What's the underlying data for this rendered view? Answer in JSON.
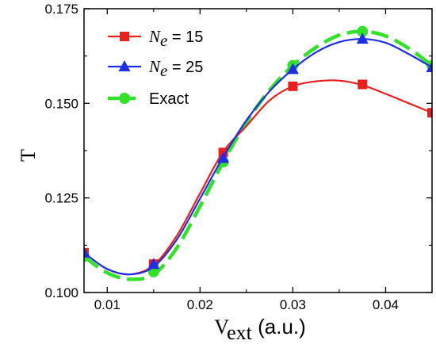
{
  "chart_data": {
    "type": "line",
    "xlabel": {
      "main": "V",
      "sub": "ext",
      "rest": " (a.u.)"
    },
    "ylabel": "T",
    "xlim": [
      0.0075,
      0.045
    ],
    "ylim": [
      0.1,
      0.175
    ],
    "x_ticks": [
      0.01,
      0.02,
      0.03,
      0.04
    ],
    "x_tick_labels": [
      "0.01",
      "0.02",
      "0.03",
      "0.04"
    ],
    "y_ticks": [
      0.1,
      0.125,
      0.15,
      0.175
    ],
    "y_tick_labels": [
      "0.100",
      "0.125",
      "0.150",
      "0.175"
    ],
    "legend_position": "top-left",
    "series": [
      {
        "name": {
          "var": "N",
          "sub": "e",
          "rest": " = 15"
        },
        "color": "#e8211f",
        "marker": "square",
        "dash": "solid",
        "x": [
          0.0075,
          0.015,
          0.0225,
          0.03,
          0.0375,
          0.045
        ],
        "y": [
          0.1105,
          0.1075,
          0.137,
          0.1545,
          0.155,
          0.1475
        ],
        "curve": [
          [
            0.0075,
            0.1105
          ],
          [
            0.01,
            0.1062
          ],
          [
            0.0125,
            0.1048
          ],
          [
            0.015,
            0.1072
          ],
          [
            0.0175,
            0.115
          ],
          [
            0.02,
            0.1262
          ],
          [
            0.0225,
            0.1372
          ],
          [
            0.025,
            0.144
          ],
          [
            0.0275,
            0.1508
          ],
          [
            0.03,
            0.1545
          ],
          [
            0.0325,
            0.1558
          ],
          [
            0.035,
            0.156
          ],
          [
            0.0375,
            0.1548
          ],
          [
            0.04,
            0.1525
          ],
          [
            0.0425,
            0.15
          ],
          [
            0.045,
            0.1475
          ]
        ]
      },
      {
        "name": {
          "var": "N",
          "sub": "e",
          "rest": " = 25"
        },
        "color": "#1d2ee6",
        "marker": "triangle",
        "dash": "solid",
        "x": [
          0.0075,
          0.015,
          0.0225,
          0.03,
          0.0375,
          0.045
        ],
        "y": [
          0.1105,
          0.1075,
          0.1355,
          0.159,
          0.167,
          0.1595
        ],
        "curve": [
          [
            0.0075,
            0.1105
          ],
          [
            0.01,
            0.1062
          ],
          [
            0.0125,
            0.1048
          ],
          [
            0.015,
            0.1068
          ],
          [
            0.0175,
            0.114
          ],
          [
            0.02,
            0.1248
          ],
          [
            0.0225,
            0.1358
          ],
          [
            0.025,
            0.1455
          ],
          [
            0.0275,
            0.1532
          ],
          [
            0.03,
            0.159
          ],
          [
            0.0325,
            0.1635
          ],
          [
            0.035,
            0.1662
          ],
          [
            0.0375,
            0.167
          ],
          [
            0.04,
            0.166
          ],
          [
            0.0425,
            0.163
          ],
          [
            0.045,
            0.1595
          ]
        ]
      },
      {
        "name": {
          "var": "",
          "sub": "",
          "rest": "Exact"
        },
        "color": "#33e02a",
        "marker": "circle",
        "dash": "dashed",
        "x": [
          0.0075,
          0.015,
          0.0225,
          0.03,
          0.0375,
          0.045
        ],
        "y": [
          0.1095,
          0.1055,
          0.1345,
          0.16,
          0.169,
          0.16
        ],
        "curve": [
          [
            0.0075,
            0.1095
          ],
          [
            0.01,
            0.1052
          ],
          [
            0.0125,
            0.1035
          ],
          [
            0.015,
            0.1048
          ],
          [
            0.0175,
            0.1118
          ],
          [
            0.02,
            0.1228
          ],
          [
            0.0225,
            0.1345
          ],
          [
            0.025,
            0.145
          ],
          [
            0.0275,
            0.1535
          ],
          [
            0.03,
            0.16
          ],
          [
            0.0325,
            0.1648
          ],
          [
            0.035,
            0.168
          ],
          [
            0.0375,
            0.169
          ],
          [
            0.04,
            0.1678
          ],
          [
            0.0425,
            0.1645
          ],
          [
            0.045,
            0.16
          ]
        ]
      }
    ]
  }
}
